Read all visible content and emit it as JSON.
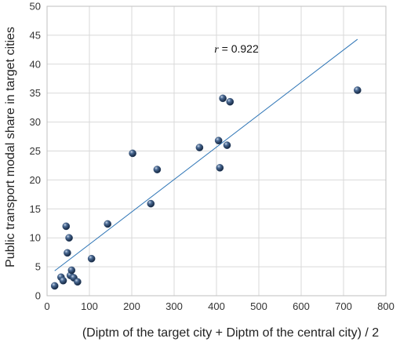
{
  "chart_data": {
    "type": "scatter",
    "title": "",
    "xlabel": "(Diptm of the target city + Diptm of the central city) / 2",
    "ylabel": "Public transport modal share in target cities",
    "xlim": [
      0,
      800
    ],
    "ylim": [
      0,
      50
    ],
    "x_ticks": [
      0,
      100,
      200,
      300,
      400,
      500,
      600,
      700,
      800
    ],
    "y_ticks": [
      0,
      5,
      10,
      15,
      20,
      25,
      30,
      35,
      40,
      45,
      50
    ],
    "grid": true,
    "points": [
      {
        "x": 18,
        "y": 1.7
      },
      {
        "x": 33,
        "y": 3.2
      },
      {
        "x": 38,
        "y": 2.6
      },
      {
        "x": 45,
        "y": 12.0
      },
      {
        "x": 48,
        "y": 7.4
      },
      {
        "x": 52,
        "y": 10.0
      },
      {
        "x": 55,
        "y": 3.5
      },
      {
        "x": 58,
        "y": 4.4
      },
      {
        "x": 63,
        "y": 3.1
      },
      {
        "x": 72,
        "y": 2.4
      },
      {
        "x": 105,
        "y": 6.4
      },
      {
        "x": 143,
        "y": 12.4
      },
      {
        "x": 202,
        "y": 24.6
      },
      {
        "x": 245,
        "y": 15.9
      },
      {
        "x": 260,
        "y": 21.8
      },
      {
        "x": 360,
        "y": 25.6
      },
      {
        "x": 405,
        "y": 26.8
      },
      {
        "x": 408,
        "y": 22.1
      },
      {
        "x": 415,
        "y": 34.1
      },
      {
        "x": 425,
        "y": 26.0
      },
      {
        "x": 432,
        "y": 33.5
      },
      {
        "x": 733,
        "y": 35.5
      }
    ],
    "trendline": {
      "x1": 18,
      "y1": 4.3,
      "x2": 733,
      "y2": 44.3
    },
    "annotation": {
      "r_symbol": "r",
      "text": " = 0.922",
      "x": 395,
      "y": 42
    },
    "colors": {
      "point": "#2f4a6e",
      "trendline": "#2e75b6",
      "grid": "#d9d9d9"
    }
  }
}
